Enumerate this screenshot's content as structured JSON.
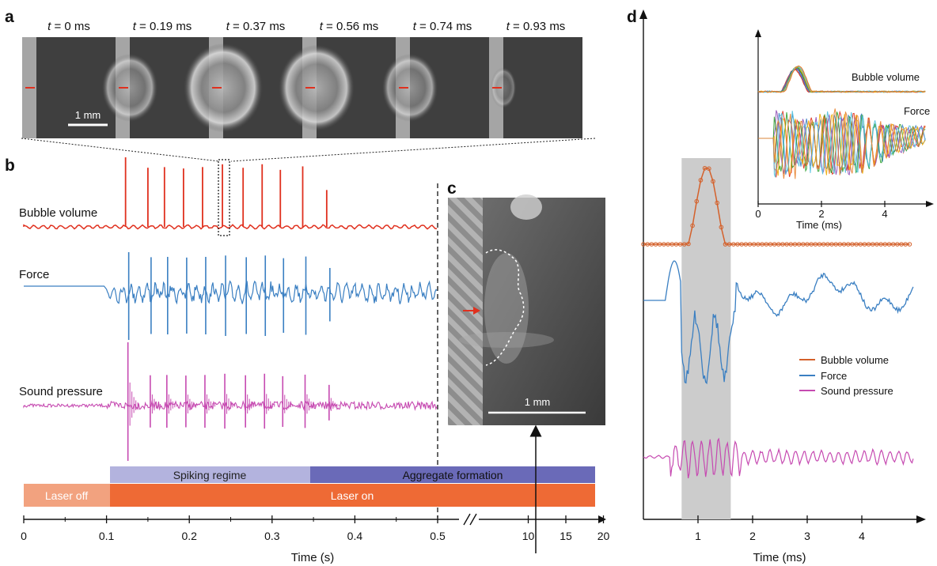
{
  "panel_labels": {
    "a": "a",
    "b": "b",
    "c": "c",
    "d": "d"
  },
  "panel_a": {
    "frames": [
      {
        "t_var": "t",
        "t_rest": " = 0 ms"
      },
      {
        "t_var": "t",
        "t_rest": " = 0.19 ms"
      },
      {
        "t_var": "t",
        "t_rest": " = 0.37 ms"
      },
      {
        "t_var": "t",
        "t_rest": " = 0.56 ms"
      },
      {
        "t_var": "t",
        "t_rest": " = 0.74 ms"
      },
      {
        "t_var": "t",
        "t_rest": " = 0.93 ms"
      }
    ],
    "bubble_intensity": [
      0,
      0.55,
      0.9,
      0.85,
      0.55,
      0.1
    ],
    "scale_bar": "1 mm"
  },
  "panel_b": {
    "traces": {
      "bubble_volume": "Bubble volume",
      "force": "Force",
      "sound_pressure": "Sound pressure"
    },
    "regimes": {
      "spiking": "Spiking regime",
      "aggregate": "Aggregate formation",
      "laser_off": "Laser off",
      "laser_on": "Laser on"
    },
    "x_axis": {
      "label": "Time (s)",
      "ticks_linear": [
        "0",
        "0.1",
        "0.2",
        "0.3",
        "0.4",
        "0.5"
      ],
      "ticks_after_break": [
        "10",
        "15",
        "20"
      ],
      "tick_values_linear": [
        0,
        0.1,
        0.2,
        0.3,
        0.4,
        0.5
      ],
      "tick_values_after_break": [
        10,
        15,
        20
      ]
    },
    "laser_on_time_s": 0.1,
    "aggregate_start_s": 0.345,
    "bubble_spike_times_s": [
      0.123,
      0.15,
      0.17,
      0.193,
      0.216,
      0.24,
      0.265,
      0.288,
      0.31,
      0.337,
      0.366
    ],
    "bubble_spike_heights": [
      1.0,
      0.85,
      0.86,
      0.84,
      0.86,
      0.9,
      0.85,
      0.9,
      0.82,
      0.87,
      0.53
    ],
    "colors": {
      "bubble": "#e0301e",
      "force": "#3a7fc2",
      "sound": "#c64ab1",
      "spiking_bar": "#b3b3de",
      "aggregate_bar": "#6a6ab8",
      "laser_off_bar": "#f2a27f",
      "laser_on_bar": "#ee6a35"
    }
  },
  "panel_c": {
    "scale_bar": "1 mm"
  },
  "panel_d": {
    "x_axis": {
      "label": "Time (ms)",
      "ticks": [
        "1",
        "2",
        "3",
        "4"
      ],
      "tick_values": [
        1,
        2,
        3,
        4
      ],
      "range": [
        0,
        5
      ]
    },
    "shaded_interval_ms": [
      0.7,
      1.6
    ],
    "legend": [
      {
        "name": "Bubble volume",
        "color": "#d4602a"
      },
      {
        "name": "Force",
        "color": "#3a7fc2"
      },
      {
        "name": "Sound pressure",
        "color": "#c64ab1"
      }
    ],
    "inset": {
      "labels": {
        "bubble_volume": "Bubble volume",
        "force": "Force"
      },
      "x_axis": {
        "label": "Time (ms)",
        "ticks": [
          "0",
          "2",
          "4"
        ],
        "tick_values": [
          0,
          2,
          4
        ],
        "range": [
          0,
          5.3
        ]
      },
      "colors": [
        "#e0301e",
        "#3a7fc2",
        "#8e4bb5",
        "#2ca02c",
        "#f0a800",
        "#53c1de",
        "#e87f2a"
      ]
    }
  }
}
